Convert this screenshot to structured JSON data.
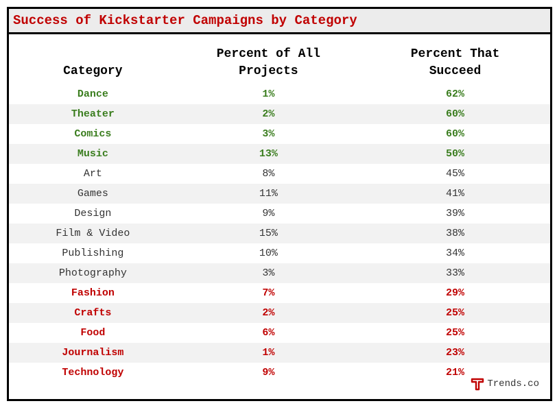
{
  "title": "Success of Kickstarter Campaigns by Category",
  "table": {
    "headers": [
      "Category",
      "Percent of All Projects",
      "Percent That Succeed"
    ],
    "rows": [
      {
        "category": "Dance",
        "share": "1%",
        "success": "62%",
        "group": "top"
      },
      {
        "category": "Theater",
        "share": "2%",
        "success": "60%",
        "group": "top"
      },
      {
        "category": "Comics",
        "share": "3%",
        "success": "60%",
        "group": "top"
      },
      {
        "category": "Music",
        "share": "13%",
        "success": "50%",
        "group": "top"
      },
      {
        "category": "Art",
        "share": "8%",
        "success": "45%",
        "group": "mid"
      },
      {
        "category": "Games",
        "share": "11%",
        "success": "41%",
        "group": "mid"
      },
      {
        "category": "Design",
        "share": "9%",
        "success": "39%",
        "group": "mid"
      },
      {
        "category": "Film & Video",
        "share": "15%",
        "success": "38%",
        "group": "mid"
      },
      {
        "category": "Publishing",
        "share": "10%",
        "success": "34%",
        "group": "mid"
      },
      {
        "category": "Photography",
        "share": "3%",
        "success": "33%",
        "group": "mid"
      },
      {
        "category": "Fashion",
        "share": "7%",
        "success": "29%",
        "group": "bottom"
      },
      {
        "category": "Crafts",
        "share": "2%",
        "success": "25%",
        "group": "bottom"
      },
      {
        "category": "Food",
        "share": "6%",
        "success": "25%",
        "group": "bottom"
      },
      {
        "category": "Journalism",
        "share": "1%",
        "success": "23%",
        "group": "bottom"
      },
      {
        "category": "Technology",
        "share": "9%",
        "success": "21%",
        "group": "bottom"
      }
    ]
  },
  "chart_data": {
    "type": "table",
    "title": "Success of Kickstarter Campaigns by Category",
    "columns": [
      "Category",
      "Percent of All Projects",
      "Percent That Succeed"
    ],
    "categories": [
      "Dance",
      "Theater",
      "Comics",
      "Music",
      "Art",
      "Games",
      "Design",
      "Film & Video",
      "Publishing",
      "Photography",
      "Fashion",
      "Crafts",
      "Food",
      "Journalism",
      "Technology"
    ],
    "series": [
      {
        "name": "Percent of All Projects",
        "values": [
          1,
          2,
          3,
          13,
          8,
          11,
          9,
          15,
          10,
          3,
          7,
          2,
          6,
          1,
          9
        ]
      },
      {
        "name": "Percent That Succeed",
        "values": [
          62,
          60,
          60,
          50,
          45,
          41,
          39,
          38,
          34,
          33,
          29,
          25,
          25,
          23,
          21
        ]
      }
    ]
  },
  "colors": {
    "top": "#3a7d1e",
    "bottom": "#c00000",
    "title": "#c00000"
  },
  "brand": {
    "name": "Trends.co",
    "icon": "trends-logo-icon"
  }
}
